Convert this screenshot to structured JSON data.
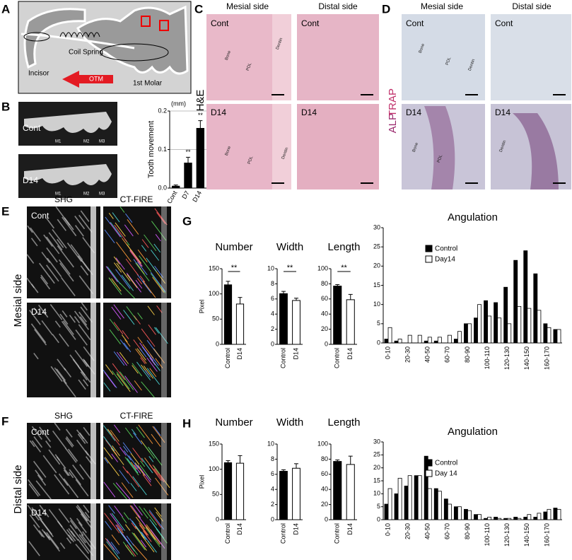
{
  "figure": {
    "panel_labels": [
      "A",
      "B",
      "C",
      "D",
      "E",
      "F",
      "G",
      "H"
    ],
    "A": {
      "incisor": "Incisor",
      "coil_spring": "Coil Spring",
      "otm": "OTM",
      "molar": "1st Molar"
    },
    "B": {
      "cont": "Cont",
      "d14": "D14",
      "teeth": [
        "M1",
        "M2",
        "M3"
      ]
    },
    "C": {
      "mesial": "Mesial side",
      "distal": "Distal side",
      "stain": "H&E",
      "cont": "Cont",
      "d14": "D14",
      "tissues": [
        "Bone",
        "PDL",
        "Dentin"
      ]
    },
    "D": {
      "mesial": "Mesial side",
      "distal": "Distal side",
      "alp": "ALP",
      "trap": "TRAP",
      "cont": "Cont",
      "d14": "D14",
      "tissues": [
        "Bone",
        "PDL",
        "Dentin"
      ]
    },
    "E": {
      "shg": "SHG",
      "ctfire": "CT-FIRE",
      "side": "Mesial side",
      "cont": "Cont",
      "d14": "D14"
    },
    "F": {
      "shg": "SHG",
      "ctfire": "CT-FIRE",
      "side": "Distal side",
      "cont": "Cont",
      "d14": "D14"
    }
  },
  "chart_data": [
    {
      "type": "bar",
      "categories": [
        "Cont",
        "D7",
        "D14"
      ],
      "values": [
        0.005,
        0.065,
        0.155
      ],
      "errors": [
        0.003,
        0.015,
        0.02
      ],
      "colors": [
        "#000000",
        "#000000",
        "#000000"
      ],
      "ylabel": "Tooth movement",
      "unit": "(mm)",
      "ylim": [
        0,
        0.2
      ],
      "yticks": [
        {
          "value": 0,
          "label": "0.0"
        },
        {
          "value": 0.1,
          "label": "0.1"
        },
        {
          "value": 0.2,
          "label": "0.2"
        }
      ],
      "grid": true,
      "significance": [
        "**",
        "**"
      ]
    },
    {
      "type": "bar",
      "title": "Number",
      "categories": [
        "Control",
        "D14"
      ],
      "values": [
        118,
        80
      ],
      "errors": [
        7,
        13
      ],
      "colors": [
        "#000000",
        "#ffffff"
      ],
      "ylabel": "Pixel",
      "ylim": [
        0,
        150
      ],
      "yticks": [
        0,
        50,
        100,
        150
      ],
      "significance": "**"
    },
    {
      "type": "bar",
      "title": "Width",
      "categories": [
        "Control",
        "D14"
      ],
      "values": [
        6.7,
        5.8
      ],
      "errors": [
        0.3,
        0.3
      ],
      "colors": [
        "#000000",
        "#ffffff"
      ],
      "ylim": [
        0,
        10
      ],
      "yticks": [
        0,
        2,
        4,
        6,
        8,
        10
      ],
      "significance": "**"
    },
    {
      "type": "bar",
      "title": "Length",
      "categories": [
        "Control",
        "D14"
      ],
      "values": [
        77,
        59
      ],
      "errors": [
        2,
        7
      ],
      "colors": [
        "#000000",
        "#ffffff"
      ],
      "ylim": [
        0,
        100
      ],
      "yticks": [
        0,
        20,
        40,
        60,
        80,
        100
      ],
      "significance": "**"
    },
    {
      "type": "grouped_bar",
      "title": "Angulation",
      "categories": [
        "0-10",
        null,
        "20-30",
        null,
        "40-50",
        null,
        "60-70",
        null,
        "80-90",
        null,
        "100-110",
        null,
        "120-130",
        null,
        "140-150",
        null,
        "160-170",
        null
      ],
      "series": [
        {
          "name": "Control",
          "color": "#000000",
          "values": [
            1,
            0.5,
            0,
            0,
            0.5,
            0.5,
            0,
            1,
            5,
            6.5,
            11,
            10.5,
            14.5,
            21.5,
            24,
            18,
            5,
            3.5
          ]
        },
        {
          "name": "Day14",
          "color": "#ffffff",
          "values": [
            4,
            1,
            2,
            2,
            1.5,
            1.5,
            2,
            3,
            5,
            10,
            7,
            6.5,
            5,
            9.5,
            9,
            8.5,
            4,
            3.5
          ]
        }
      ],
      "ylim": [
        0,
        30
      ],
      "yticks": [
        0,
        5,
        10,
        15,
        20,
        25,
        30
      ],
      "legend": "upper left"
    },
    {
      "type": "bar",
      "title": "Number",
      "categories": [
        "Control",
        "D14"
      ],
      "values": [
        113,
        112
      ],
      "errors": [
        4,
        15
      ],
      "colors": [
        "#000000",
        "#ffffff"
      ],
      "ylabel": "Pixel",
      "ylim": [
        0,
        150
      ],
      "yticks": [
        0,
        50,
        100,
        150
      ]
    },
    {
      "type": "bar",
      "title": "Width",
      "categories": [
        "Control",
        "D14"
      ],
      "values": [
        6.4,
        6.8
      ],
      "errors": [
        0.2,
        0.6
      ],
      "colors": [
        "#000000",
        "#ffffff"
      ],
      "ylim": [
        0,
        10
      ],
      "yticks": [
        0,
        2,
        4,
        6,
        8,
        10
      ]
    },
    {
      "type": "bar",
      "title": "Length",
      "categories": [
        "Control",
        "D14"
      ],
      "values": [
        77,
        73
      ],
      "errors": [
        2,
        11
      ],
      "colors": [
        "#000000",
        "#ffffff"
      ],
      "ylim": [
        0,
        100
      ],
      "yticks": [
        0,
        20,
        40,
        60,
        80,
        100
      ]
    },
    {
      "type": "grouped_bar",
      "title": "Angulation",
      "categories": [
        "0-10",
        null,
        "20-30",
        null,
        "40-50",
        null,
        "60-70",
        null,
        "80-90",
        null,
        "100-110",
        null,
        "120-130",
        null,
        "140-150",
        null,
        "160-170",
        null
      ],
      "series": [
        {
          "name": "Control",
          "color": "#000000",
          "values": [
            6,
            10,
            13,
            17,
            24.5,
            12,
            8,
            5,
            4,
            2,
            0.5,
            1,
            0.5,
            1,
            1,
            1,
            3,
            4.5
          ]
        },
        {
          "name": "Day 14",
          "color": "#ffffff",
          "values": [
            12,
            16,
            17,
            17,
            12,
            11,
            6,
            5,
            3.5,
            2,
            1,
            0.5,
            0.5,
            0.5,
            2,
            2.5,
            4,
            4
          ]
        }
      ],
      "ylim": [
        0,
        30
      ],
      "yticks": [
        0,
        5,
        10,
        15,
        20,
        25,
        30
      ],
      "legend": "upper left"
    }
  ]
}
